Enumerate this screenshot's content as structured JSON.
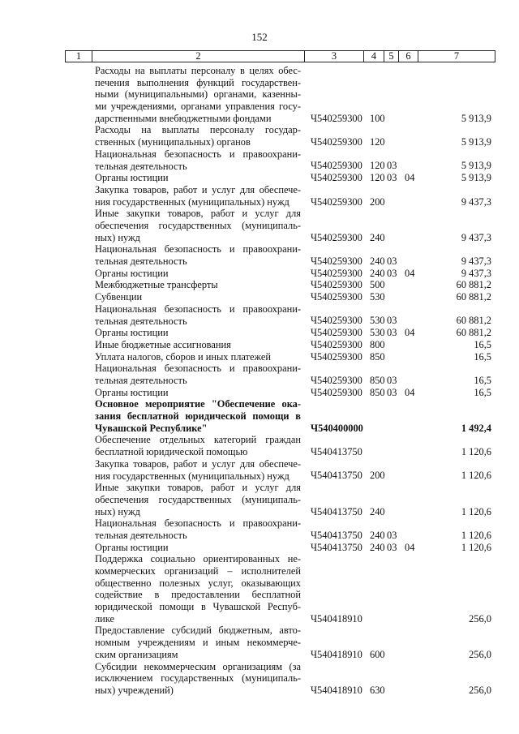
{
  "page_number": "152",
  "header": [
    "1",
    "2",
    "3",
    "4",
    "5",
    "6",
    "7"
  ],
  "rows": [
    {
      "lines": [
        "Расходы на выплаты персоналу в целях обес-",
        "печения выполнения функций государствен-",
        "ными (муниципальными) органами, казенны-",
        "ми учреждениями, органами управления госу-",
        "дарственными внебюджетными фондами"
      ],
      "c3": "Ч540259300",
      "c4": "100",
      "c5": "",
      "c6": "",
      "c7": "5 913,9"
    },
    {
      "lines": [
        "Расходы на выплаты персоналу государ-",
        "ственных (муниципальных) органов"
      ],
      "c3": "Ч540259300",
      "c4": "120",
      "c5": "",
      "c6": "",
      "c7": "5 913,9"
    },
    {
      "lines": [
        "Национальная безопасность и правоохрани-",
        "тельная деятельность"
      ],
      "c3": "Ч540259300",
      "c4": "120",
      "c5": "03",
      "c6": "",
      "c7": "5 913,9"
    },
    {
      "lines": [
        "Органы юстиции"
      ],
      "c3": "Ч540259300",
      "c4": "120",
      "c5": "03",
      "c6": "04",
      "c7": "5 913,9"
    },
    {
      "lines": [
        "Закупка товаров, работ и услуг для обеспече-",
        "ния государственных (муниципальных) нужд"
      ],
      "c3": "Ч540259300",
      "c4": "200",
      "c5": "",
      "c6": "",
      "c7": "9 437,3"
    },
    {
      "lines": [
        "Иные закупки товаров, работ и услуг для",
        "обеспечения государственных (муниципаль-",
        "ных) нужд"
      ],
      "c3": "Ч540259300",
      "c4": "240",
      "c5": "",
      "c6": "",
      "c7": "9 437,3"
    },
    {
      "lines": [
        "Национальная безопасность и правоохрани-",
        "тельная деятельность"
      ],
      "c3": "Ч540259300",
      "c4": "240",
      "c5": "03",
      "c6": "",
      "c7": "9 437,3"
    },
    {
      "lines": [
        "Органы юстиции"
      ],
      "c3": "Ч540259300",
      "c4": "240",
      "c5": "03",
      "c6": "04",
      "c7": "9 437,3"
    },
    {
      "lines": [
        "Межбюджетные трансферты"
      ],
      "c3": "Ч540259300",
      "c4": "500",
      "c5": "",
      "c6": "",
      "c7": "60 881,2"
    },
    {
      "lines": [
        "Субвенции"
      ],
      "c3": "Ч540259300",
      "c4": "530",
      "c5": "",
      "c6": "",
      "c7": "60 881,2"
    },
    {
      "lines": [
        "Национальная безопасность и правоохрани-",
        "тельная деятельность"
      ],
      "c3": "Ч540259300",
      "c4": "530",
      "c5": "03",
      "c6": "",
      "c7": "60 881,2"
    },
    {
      "lines": [
        "Органы юстиции"
      ],
      "c3": "Ч540259300",
      "c4": "530",
      "c5": "03",
      "c6": "04",
      "c7": "60 881,2"
    },
    {
      "lines": [
        "Иные бюджетные ассигнования"
      ],
      "c3": "Ч540259300",
      "c4": "800",
      "c5": "",
      "c6": "",
      "c7": "16,5"
    },
    {
      "lines": [
        "Уплата налогов, сборов и иных платежей"
      ],
      "c3": "Ч540259300",
      "c4": "850",
      "c5": "",
      "c6": "",
      "c7": "16,5"
    },
    {
      "lines": [
        "Национальная безопасность и правоохрани-",
        "тельная деятельность"
      ],
      "c3": "Ч540259300",
      "c4": "850",
      "c5": "03",
      "c6": "",
      "c7": "16,5"
    },
    {
      "lines": [
        "Органы юстиции"
      ],
      "c3": "Ч540259300",
      "c4": "850",
      "c5": "03",
      "c6": "04",
      "c7": "16,5"
    },
    {
      "bold": true,
      "lines": [
        "Основное мероприятие \"Обеспечение ока-",
        "зания бесплатной юридической помощи в",
        "Чувашской Республике\""
      ],
      "c3": "Ч540400000",
      "c4": "",
      "c5": "",
      "c6": "",
      "c7": "1 492,4"
    },
    {
      "lines": [
        "Обеспечение отдельных категорий граждан",
        "бесплатной юридической помощью"
      ],
      "c3": "Ч540413750",
      "c4": "",
      "c5": "",
      "c6": "",
      "c7": "1 120,6"
    },
    {
      "lines": [
        "Закупка товаров, работ и услуг для обеспече-",
        "ния государственных (муниципальных) нужд"
      ],
      "c3": "Ч540413750",
      "c4": "200",
      "c5": "",
      "c6": "",
      "c7": "1 120,6"
    },
    {
      "lines": [
        "Иные закупки товаров, работ и услуг для",
        "обеспечения государственных (муниципаль-",
        "ных) нужд"
      ],
      "c3": "Ч540413750",
      "c4": "240",
      "c5": "",
      "c6": "",
      "c7": "1 120,6"
    },
    {
      "lines": [
        "Национальная безопасность и правоохрани-",
        "тельная деятельность"
      ],
      "c3": "Ч540413750",
      "c4": "240",
      "c5": "03",
      "c6": "",
      "c7": "1 120,6"
    },
    {
      "lines": [
        "Органы юстиции"
      ],
      "c3": "Ч540413750",
      "c4": "240",
      "c5": "03",
      "c6": "04",
      "c7": "1 120,6"
    },
    {
      "lines": [
        "Поддержка социально ориентированных не-",
        "коммерческих организаций – исполнителей",
        "общественно полезных услуг, оказывающих",
        "содействие в предоставлении бесплатной",
        "юридической помощи в Чувашской Респуб-",
        "лике"
      ],
      "c3": "Ч540418910",
      "c4": "",
      "c5": "",
      "c6": "",
      "c7": "256,0"
    },
    {
      "lines": [
        "Предоставление субсидий бюджетным, авто-",
        "номным учреждениям и иным некоммерче-",
        "ским организациям"
      ],
      "c3": "Ч540418910",
      "c4": "600",
      "c5": "",
      "c6": "",
      "c7": "256,0"
    },
    {
      "lines": [
        "Субсидии некоммерческим организациям (за",
        "исключением государственных (муниципаль-",
        "ных) учреждений)"
      ],
      "c3": "Ч540418910",
      "c4": "630",
      "c5": "",
      "c6": "",
      "c7": "256,0"
    }
  ]
}
